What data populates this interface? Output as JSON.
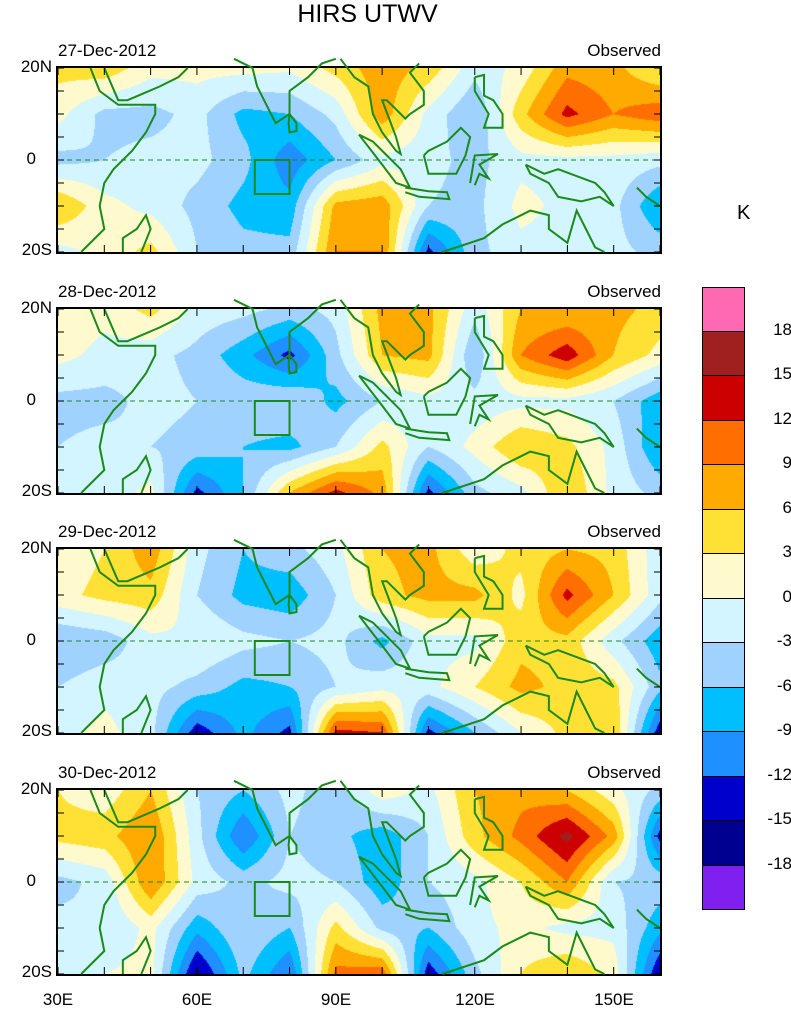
{
  "title": "HIRS UTWV",
  "colorbar": {
    "unit": "K",
    "labels": [
      "18",
      "15",
      "12",
      "9",
      "6",
      "3",
      "0",
      "-3",
      "-6",
      "-9",
      "-12",
      "-15",
      "-18"
    ],
    "colors": [
      "#FF69B4",
      "#A02020",
      "#CD0000",
      "#FF6E00",
      "#FFAA00",
      "#FFE135",
      "#FFFACD",
      "#D2F5FF",
      "#A0D2FF",
      "#00BFFF",
      "#1E90FF",
      "#0000CD",
      "#000090",
      "#8020F0"
    ]
  },
  "axes": {
    "ylabels": [
      "20N",
      "0",
      "20S"
    ],
    "xlabels": [
      "30E",
      "60E",
      "90E",
      "120E",
      "150E"
    ]
  },
  "chart_data": {
    "type": "heatmap",
    "title": "HIRS UTWV",
    "unit": "K",
    "levels": [
      -18,
      -15,
      -12,
      -9,
      -6,
      -3,
      0,
      3,
      6,
      9,
      12,
      15,
      18
    ],
    "lon": [
      30,
      40,
      50,
      60,
      70,
      80,
      90,
      100,
      110,
      120,
      130,
      140,
      150,
      160
    ],
    "lat": [
      20,
      10,
      0,
      -10,
      -20
    ],
    "xlim": [
      30,
      160
    ],
    "ylim": [
      -20,
      20
    ],
    "panels": [
      {
        "date": "27-Dec-2012",
        "label": "Observed",
        "values": [
          [
            4,
            5,
            1,
            1,
            1,
            0.5,
            4,
            8,
            5,
            -2,
            1,
            8,
            7,
            3
          ],
          [
            1,
            -4,
            -4,
            -2,
            -7,
            -6,
            -2,
            8,
            -1,
            -6,
            5,
            13,
            9,
            11
          ],
          [
            -4,
            -3,
            -2,
            -2,
            -5,
            -11,
            -6,
            -1,
            -2,
            -4,
            -1,
            -1,
            -1,
            -2
          ],
          [
            6,
            1,
            -1,
            -4,
            -7,
            -8,
            7,
            8,
            -3,
            -4,
            1,
            -1,
            -2,
            -9
          ],
          [
            -1,
            1,
            4,
            -3,
            -5,
            -5,
            9,
            9,
            -13,
            -4,
            -1,
            -1,
            -2,
            -4
          ]
        ]
      },
      {
        "date": "28-Dec-2012",
        "label": "Observed",
        "values": [
          [
            2,
            1,
            4,
            -1,
            -2,
            -4,
            -2,
            7,
            7,
            -2,
            6,
            6,
            7,
            5
          ],
          [
            1,
            -1,
            -2,
            -4,
            -8,
            -13,
            -4,
            6,
            7,
            -6,
            9,
            14,
            6,
            2
          ],
          [
            -4,
            -4,
            -2,
            -3,
            -4,
            -3,
            -7,
            -3,
            -1,
            -2,
            -1,
            -1,
            -3,
            -8
          ],
          [
            -3,
            -2,
            -3,
            -4,
            -6,
            -7,
            -3,
            4,
            -3,
            1,
            6,
            4,
            -1,
            -9
          ],
          [
            -1,
            -2,
            1,
            -13,
            -6,
            6,
            13,
            8,
            -13,
            -4,
            -1,
            6,
            -1,
            -4
          ]
        ]
      },
      {
        "date": "29-Dec-2012",
        "label": "Observed",
        "values": [
          [
            1,
            3,
            8,
            -2,
            -6,
            -4,
            -1,
            6,
            7,
            1,
            4,
            6,
            5,
            -2
          ],
          [
            2,
            4,
            5,
            -3,
            -7,
            -8,
            -3,
            5,
            7,
            7,
            2,
            13,
            6,
            -2
          ],
          [
            -6,
            -5,
            -1,
            0,
            -2,
            -3,
            -2,
            -7,
            -1,
            -1,
            5,
            5,
            -2,
            -8
          ],
          [
            -3,
            -1,
            -2,
            -4,
            -7,
            -6,
            -3,
            -1,
            -1,
            3,
            7,
            5,
            4,
            -5
          ],
          [
            -1,
            1,
            -2,
            -14,
            -8,
            -13,
            13,
            12,
            -13,
            -6,
            0,
            4,
            6,
            -14
          ]
        ]
      },
      {
        "date": "30-Dec-2012",
        "label": "Observed",
        "values": [
          [
            3,
            1,
            6,
            -3,
            -6,
            -2,
            -5,
            2,
            -1,
            6,
            8,
            6,
            1,
            -4
          ],
          [
            4,
            5,
            9,
            -2,
            -12,
            -3,
            -5,
            -8,
            -3,
            5,
            10,
            16,
            8,
            -13
          ],
          [
            -4,
            -2,
            9,
            -1,
            -4,
            -2,
            -3,
            -8,
            -3,
            -1,
            3,
            9,
            -3,
            -4
          ],
          [
            -2,
            -3,
            1,
            -8,
            -3,
            -6,
            4,
            -4,
            -6,
            -1,
            1,
            -1,
            -1,
            -8
          ],
          [
            -1,
            0,
            1,
            -16,
            -5,
            -12,
            10,
            11,
            -14,
            -4,
            3,
            6,
            2,
            -15
          ]
        ]
      }
    ]
  }
}
